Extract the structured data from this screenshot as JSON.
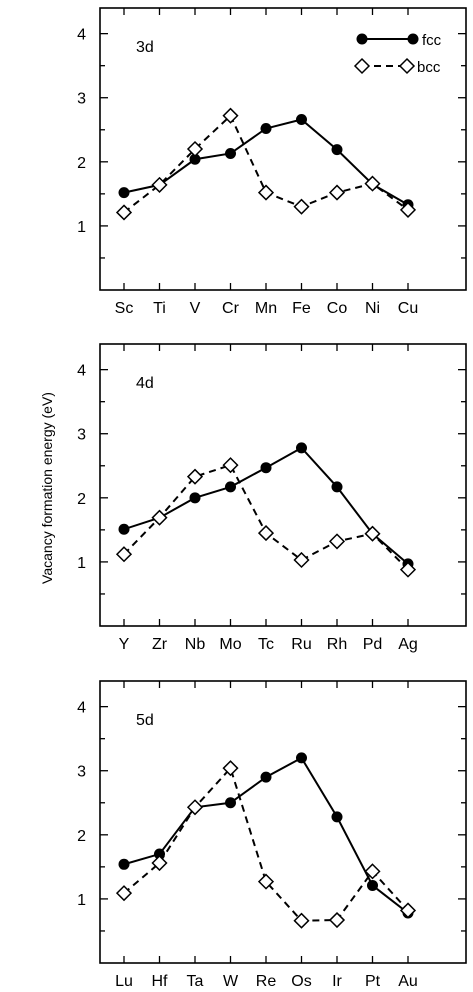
{
  "ylabel": "Vacancy formation energy (eV)",
  "legend": {
    "fcc": "fcc",
    "bcc": "bcc",
    "placement": "top-right of first panel"
  },
  "chart_data": [
    {
      "type": "line",
      "panel_label": "3d",
      "categories": [
        "Sc",
        "Ti",
        "V",
        "Cr",
        "Mn",
        "Fe",
        "Co",
        "Ni",
        "Cu"
      ],
      "ylim": [
        0,
        4.4
      ],
      "yticks": [
        1,
        2,
        3,
        4
      ],
      "series": [
        {
          "name": "fcc",
          "style": "solid",
          "marker": "filled-circle",
          "values": [
            1.52,
            1.64,
            2.04,
            2.13,
            2.52,
            2.66,
            2.19,
            1.65,
            1.33
          ]
        },
        {
          "name": "bcc",
          "style": "dashed",
          "marker": "open-diamond",
          "values": [
            1.21,
            1.64,
            2.2,
            2.72,
            1.52,
            1.3,
            1.52,
            1.66,
            1.25
          ]
        }
      ]
    },
    {
      "type": "line",
      "panel_label": "4d",
      "categories": [
        "Y",
        "Zr",
        "Nb",
        "Mo",
        "Tc",
        "Ru",
        "Rh",
        "Pd",
        "Ag"
      ],
      "ylim": [
        0,
        4.4
      ],
      "yticks": [
        1,
        2,
        3,
        4
      ],
      "series": [
        {
          "name": "fcc",
          "style": "solid",
          "marker": "filled-circle",
          "values": [
            1.51,
            1.69,
            2.0,
            2.17,
            2.47,
            2.78,
            2.17,
            1.44,
            0.97
          ]
        },
        {
          "name": "bcc",
          "style": "dashed",
          "marker": "open-diamond",
          "values": [
            1.12,
            1.69,
            2.33,
            2.51,
            1.45,
            1.03,
            1.32,
            1.44,
            0.88
          ]
        }
      ]
    },
    {
      "type": "line",
      "panel_label": "5d",
      "categories": [
        "Lu",
        "Hf",
        "Ta",
        "W",
        "Re",
        "Os",
        "Ir",
        "Pt",
        "Au"
      ],
      "ylim": [
        0,
        4.4
      ],
      "yticks": [
        1,
        2,
        3,
        4
      ],
      "series": [
        {
          "name": "fcc",
          "style": "solid",
          "marker": "filled-circle",
          "values": [
            1.54,
            1.7,
            2.43,
            2.5,
            2.9,
            3.2,
            2.28,
            1.21,
            0.78
          ]
        },
        {
          "name": "bcc",
          "style": "dashed",
          "marker": "open-diamond",
          "values": [
            1.09,
            1.56,
            2.43,
            3.04,
            1.27,
            0.66,
            0.67,
            1.43,
            0.82
          ]
        }
      ]
    }
  ]
}
